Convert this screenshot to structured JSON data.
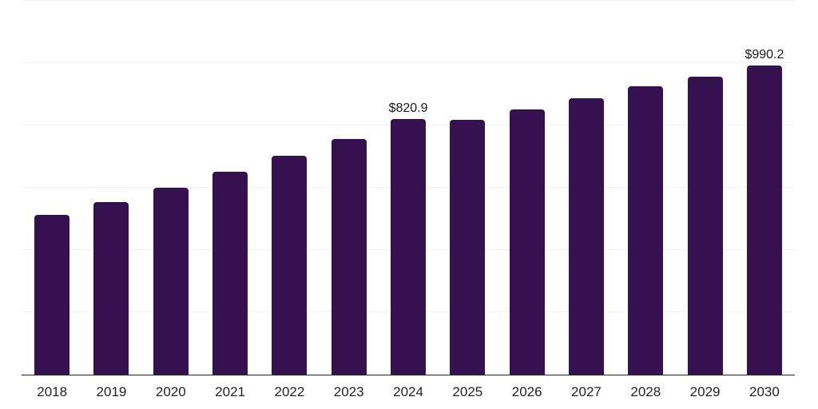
{
  "chart_data": {
    "type": "bar",
    "title": "",
    "xlabel": "",
    "ylabel": "",
    "categories": [
      "2018",
      "2019",
      "2020",
      "2021",
      "2022",
      "2023",
      "2024",
      "2025",
      "2026",
      "2027",
      "2028",
      "2029",
      "2030"
    ],
    "values": [
      513,
      554,
      600,
      650,
      703,
      755,
      820.9,
      816,
      851,
      887,
      925,
      955,
      990.2
    ],
    "data_labels": [
      {
        "index": 6,
        "category": "2024",
        "text": "$820.9"
      },
      {
        "index": 12,
        "category": "2030",
        "text": "$990.2"
      }
    ],
    "ylim": [
      0,
      1200
    ],
    "gridline_step": 200,
    "grid": true,
    "y_axis_tick_labels_visible": false,
    "legend_position": "none",
    "bar_color": "#361150",
    "gridline_color": "#f1f1f3",
    "axis_line_color": "#262626",
    "value_label_color": "#1a1a1a",
    "tick_label_color": "#222222",
    "background_color": "#ffffff"
  }
}
